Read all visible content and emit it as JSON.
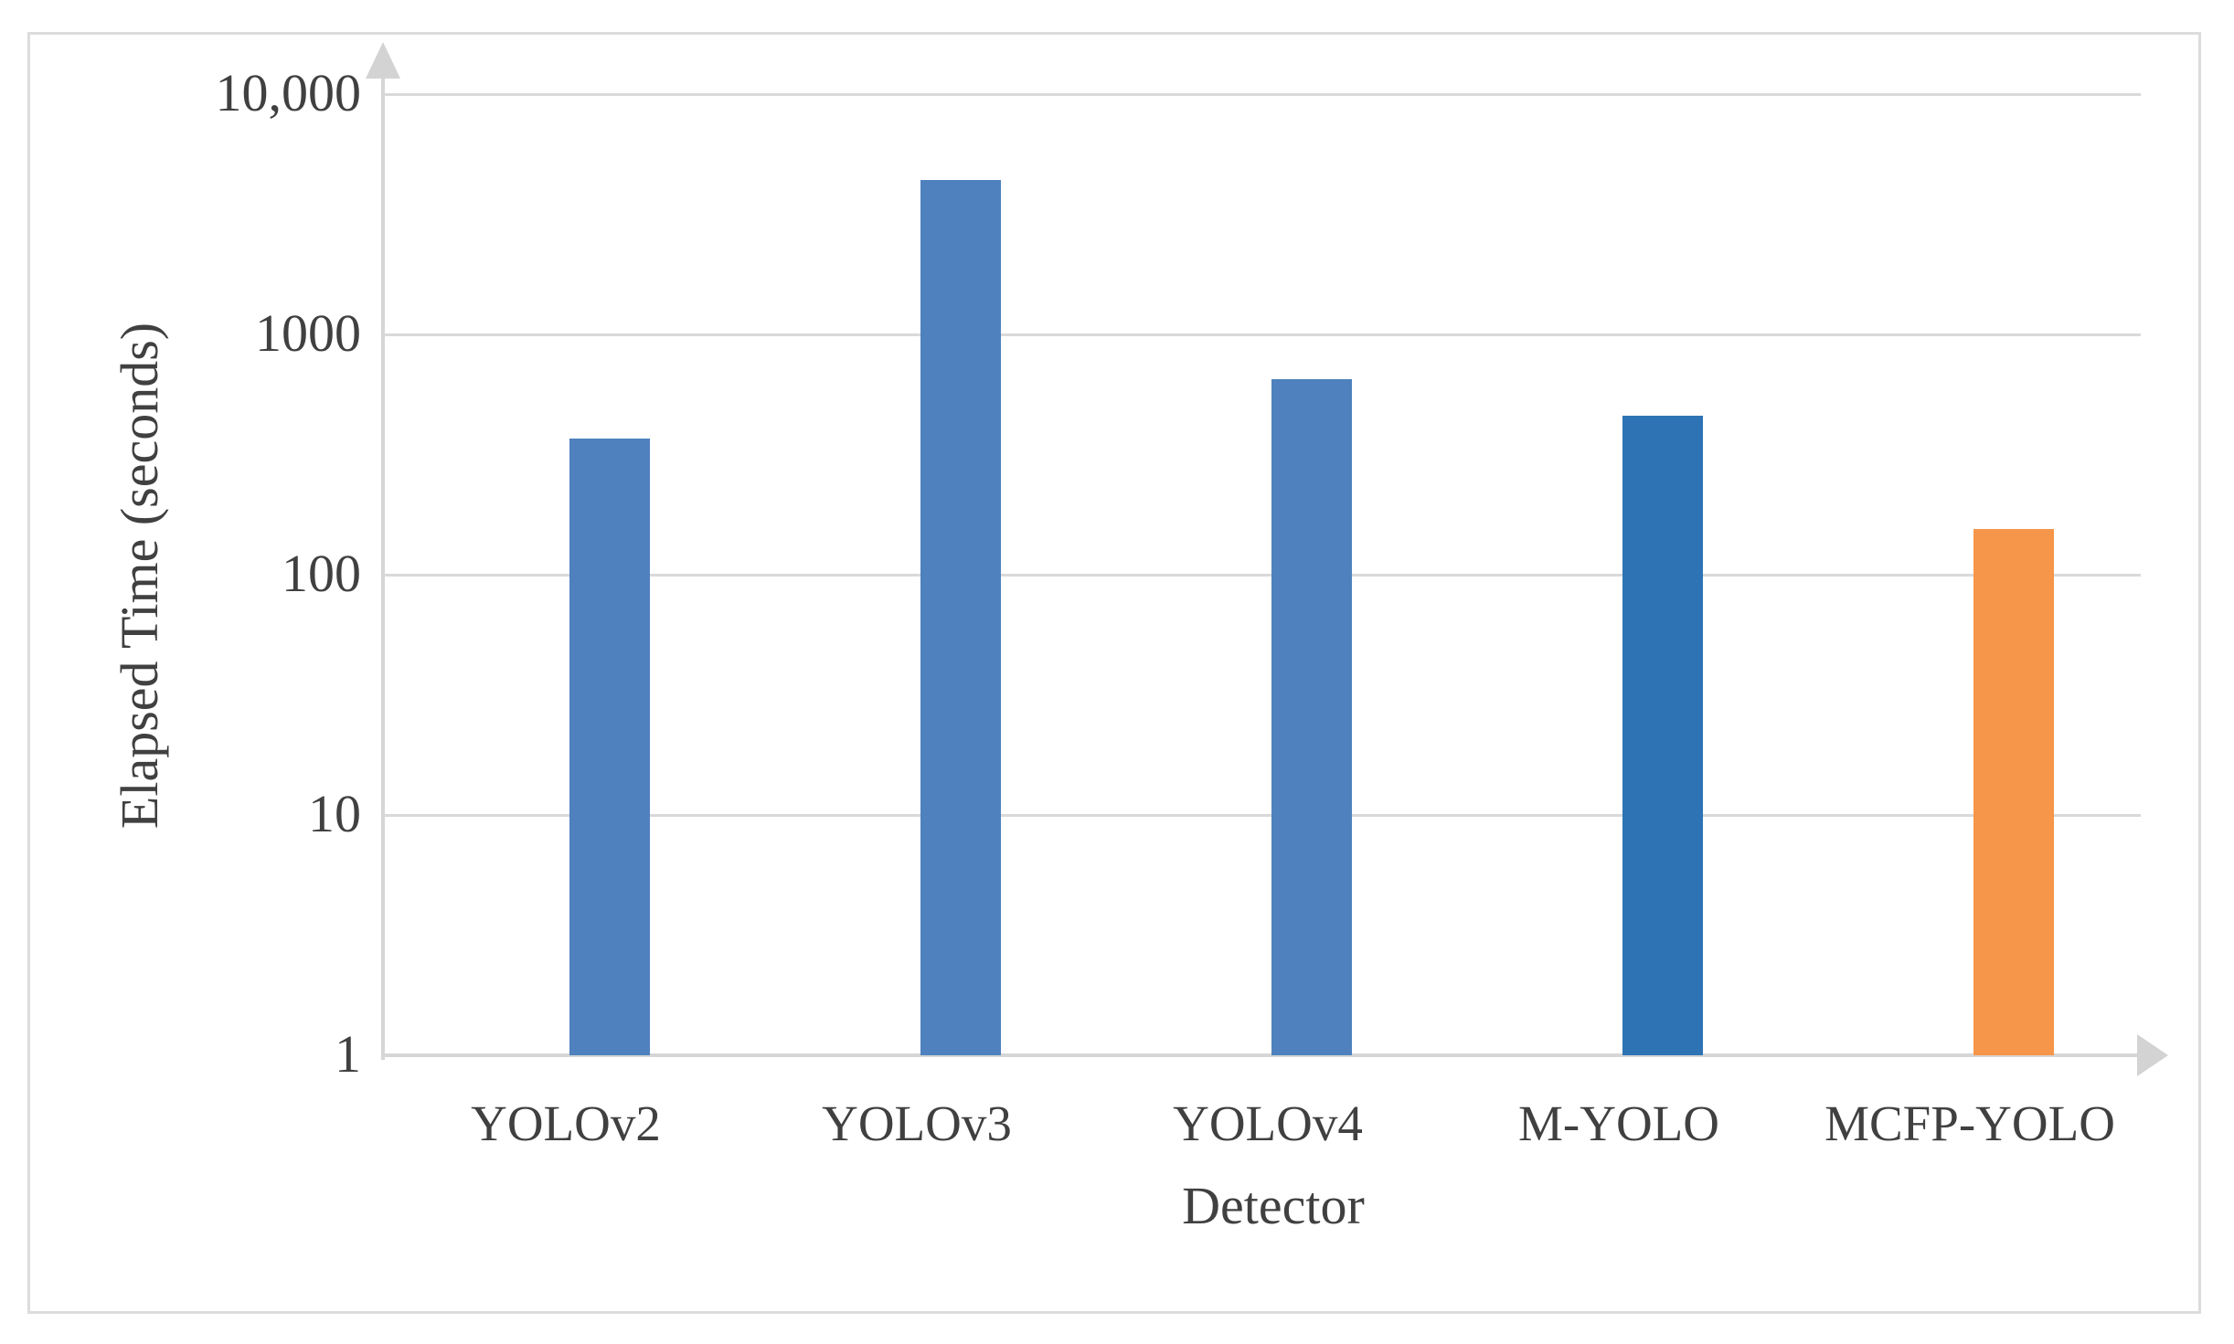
{
  "chart_data": {
    "type": "bar",
    "title": "",
    "categories": [
      "YOLOv2",
      "YOLOv3",
      "YOLOv4",
      "M-YOLO",
      "MCFP-YOLO"
    ],
    "values": [
      370,
      4400,
      650,
      460,
      155
    ],
    "xlabel": "Detector",
    "ylabel": "Elapsed Time (seconds)",
    "y_scale": "log10",
    "ylim": [
      1,
      10000
    ],
    "y_ticks": [
      {
        "label": "10,000",
        "value": 10000
      },
      {
        "label": "1000",
        "value": 1000
      },
      {
        "label": "100",
        "value": 100
      },
      {
        "label": "10",
        "value": 10
      },
      {
        "label": "1",
        "value": 1
      }
    ],
    "grid": "horizontal",
    "legend": "none",
    "bar_colors": [
      "#4E81BD",
      "#4E81BD",
      "#4E81BD",
      "#2E74B4",
      "#F6964A"
    ],
    "colors": {
      "gridline": "#D9D9D9",
      "axis": "#D6D6D6",
      "arrow": "#D3D3D3",
      "text": "#404040",
      "frame_border": "#DCDCDC",
      "background": "#FFFFFF"
    }
  }
}
